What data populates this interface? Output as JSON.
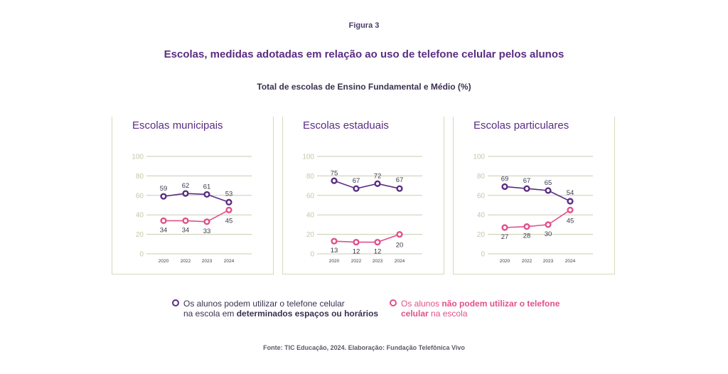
{
  "figure_label": "Figura 3",
  "title": "Escolas, medidas adotadas em relação ao uso de telefone celular pelos alunos",
  "subtitle": "Total de escolas de Ensino Fundamental e Médio (%)",
  "source": "Fonte: TIC Educação, 2024. Elaboração: Fundação Telefônica Vivo",
  "colors": {
    "purple": "#5a2d82",
    "pink": "#e0508a",
    "axis": "#c9ccb0",
    "panel_border": "#d6d9b8"
  },
  "legend": {
    "purple": {
      "line1": "Os alunos podem utilizar o telefone celular",
      "line2_a": "na escola em ",
      "line2_b": "determinados espaços ou horários"
    },
    "pink": {
      "line1_a": "Os alunos ",
      "line1_b": "não podem utilizar o telefone",
      "line2_a": "celular",
      "line2_b": " na escola"
    }
  },
  "chart_data": [
    {
      "type": "line",
      "title": "Escolas municipais",
      "x": [
        "2020",
        "2022",
        "2023",
        "2024"
      ],
      "ylim": [
        0,
        100
      ],
      "yticks": [
        0,
        20,
        40,
        60,
        80,
        100
      ],
      "series": [
        {
          "key": "purple",
          "values": [
            59,
            62,
            61,
            53
          ]
        },
        {
          "key": "pink",
          "values": [
            34,
            34,
            33,
            45
          ]
        }
      ]
    },
    {
      "type": "line",
      "title": "Escolas estaduais",
      "x": [
        "2020",
        "2022",
        "2023",
        "2024"
      ],
      "ylim": [
        0,
        100
      ],
      "yticks": [
        0,
        20,
        40,
        60,
        80,
        100
      ],
      "series": [
        {
          "key": "purple",
          "values": [
            75,
            67,
            72,
            67
          ]
        },
        {
          "key": "pink",
          "values": [
            13,
            12,
            12,
            20
          ]
        }
      ]
    },
    {
      "type": "line",
      "title": "Escolas particulares",
      "x": [
        "2020",
        "2022",
        "2023",
        "2024"
      ],
      "ylim": [
        0,
        100
      ],
      "yticks": [
        0,
        20,
        40,
        60,
        80,
        100
      ],
      "series": [
        {
          "key": "purple",
          "values": [
            69,
            67,
            65,
            54
          ]
        },
        {
          "key": "pink",
          "values": [
            27,
            28,
            30,
            45
          ]
        }
      ]
    }
  ]
}
